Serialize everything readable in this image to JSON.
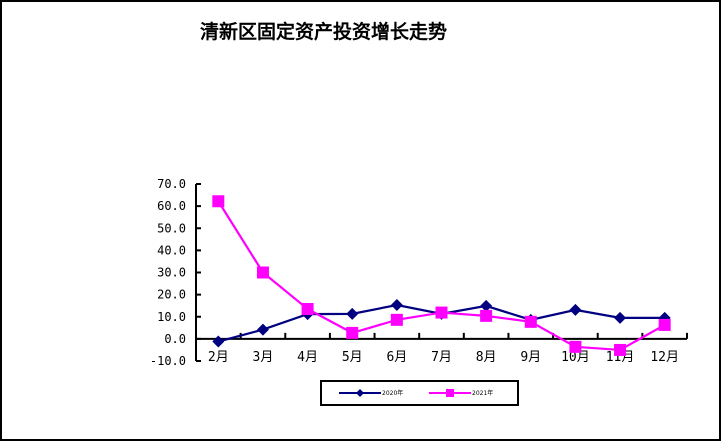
{
  "chart_data": {
    "type": "line",
    "title": "清新区固定资产投资增长走势",
    "xlabel": "",
    "ylabel": "",
    "ylim": [
      -10,
      70
    ],
    "yticks": [
      "70.0",
      "60.0",
      "50.0",
      "40.0",
      "30.0",
      "20.0",
      "10.0",
      "0.0",
      "-10.0"
    ],
    "grid": false,
    "legend_position": "bottom",
    "categories": [
      "2月",
      "3月",
      "4月",
      "5月",
      "6月",
      "7月",
      "8月",
      "9月",
      "10月",
      "11月",
      "12月"
    ],
    "series": [
      {
        "name": "2020年",
        "color": "#000080",
        "marker": "diamond",
        "values": [
          -1.2,
          4.2,
          11.2,
          11.3,
          15.3,
          11.3,
          14.9,
          8.6,
          13.1,
          9.5,
          9.5
        ]
      },
      {
        "name": "2021年",
        "color": "#FF00FF",
        "marker": "square",
        "values": [
          62.2,
          30.0,
          13.5,
          2.7,
          8.6,
          11.9,
          10.4,
          7.7,
          -3.6,
          -5.0,
          6.3
        ]
      }
    ]
  }
}
